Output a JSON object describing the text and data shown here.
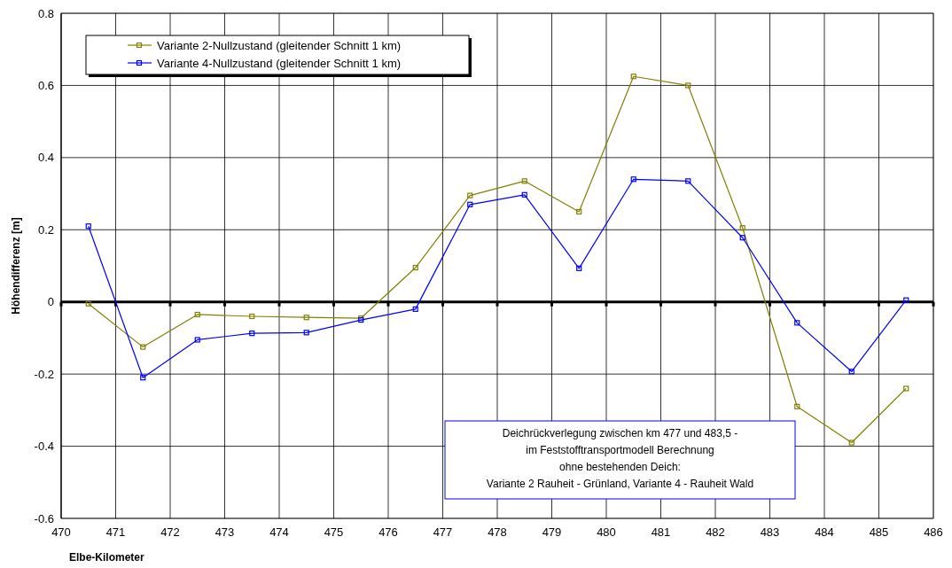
{
  "chart_data": {
    "type": "line",
    "xlabel": "Elbe-Kilometer",
    "ylabel": "Höhendifferenz [m]",
    "x": [
      470.5,
      471.5,
      472.5,
      473.5,
      474.5,
      475.5,
      476.5,
      477.5,
      478.5,
      479.5,
      480.5,
      481.5,
      482.5,
      483.5,
      484.5,
      485.5
    ],
    "series": [
      {
        "name": "Variante 2-Nullzustand (gleitender Schnitt 1 km)",
        "color": "#808000",
        "values": [
          -0.005,
          -0.125,
          -0.035,
          -0.04,
          -0.043,
          -0.045,
          0.095,
          0.295,
          0.335,
          0.25,
          0.625,
          0.6,
          0.205,
          -0.29,
          -0.39,
          -0.24
        ]
      },
      {
        "name": "Variante 4-Nullzustand (gleitender Schnitt 1 km)",
        "color": "#0000ff",
        "values": [
          0.21,
          -0.21,
          -0.105,
          -0.087,
          -0.085,
          -0.05,
          -0.02,
          0.27,
          0.297,
          0.093,
          0.34,
          0.335,
          0.178,
          -0.058,
          -0.193,
          0.005
        ]
      }
    ],
    "xlim": [
      470,
      486
    ],
    "xticks": [
      470,
      471,
      472,
      473,
      474,
      475,
      476,
      477,
      478,
      479,
      480,
      481,
      482,
      483,
      484,
      485,
      486
    ],
    "ylim": [
      -0.6,
      0.8
    ],
    "yticks": [
      -0.6,
      -0.4,
      -0.2,
      0,
      0.2,
      0.4,
      0.6,
      0.8
    ],
    "grid": true,
    "legend": "top left",
    "marker": "square",
    "line_style": "solid",
    "ref_lines": [
      {
        "axis": "y",
        "value": 0,
        "color": "#000000"
      }
    ],
    "annotations": [
      "Deichrückverlegung zwischen km 477 und 483,5  -\nim Feststofftransportmodell Berechnung\nohne bestehenden Deich:\nVariante 2 Rauheit - Grünland, Variante 4 - Rauheit Wald"
    ]
  }
}
